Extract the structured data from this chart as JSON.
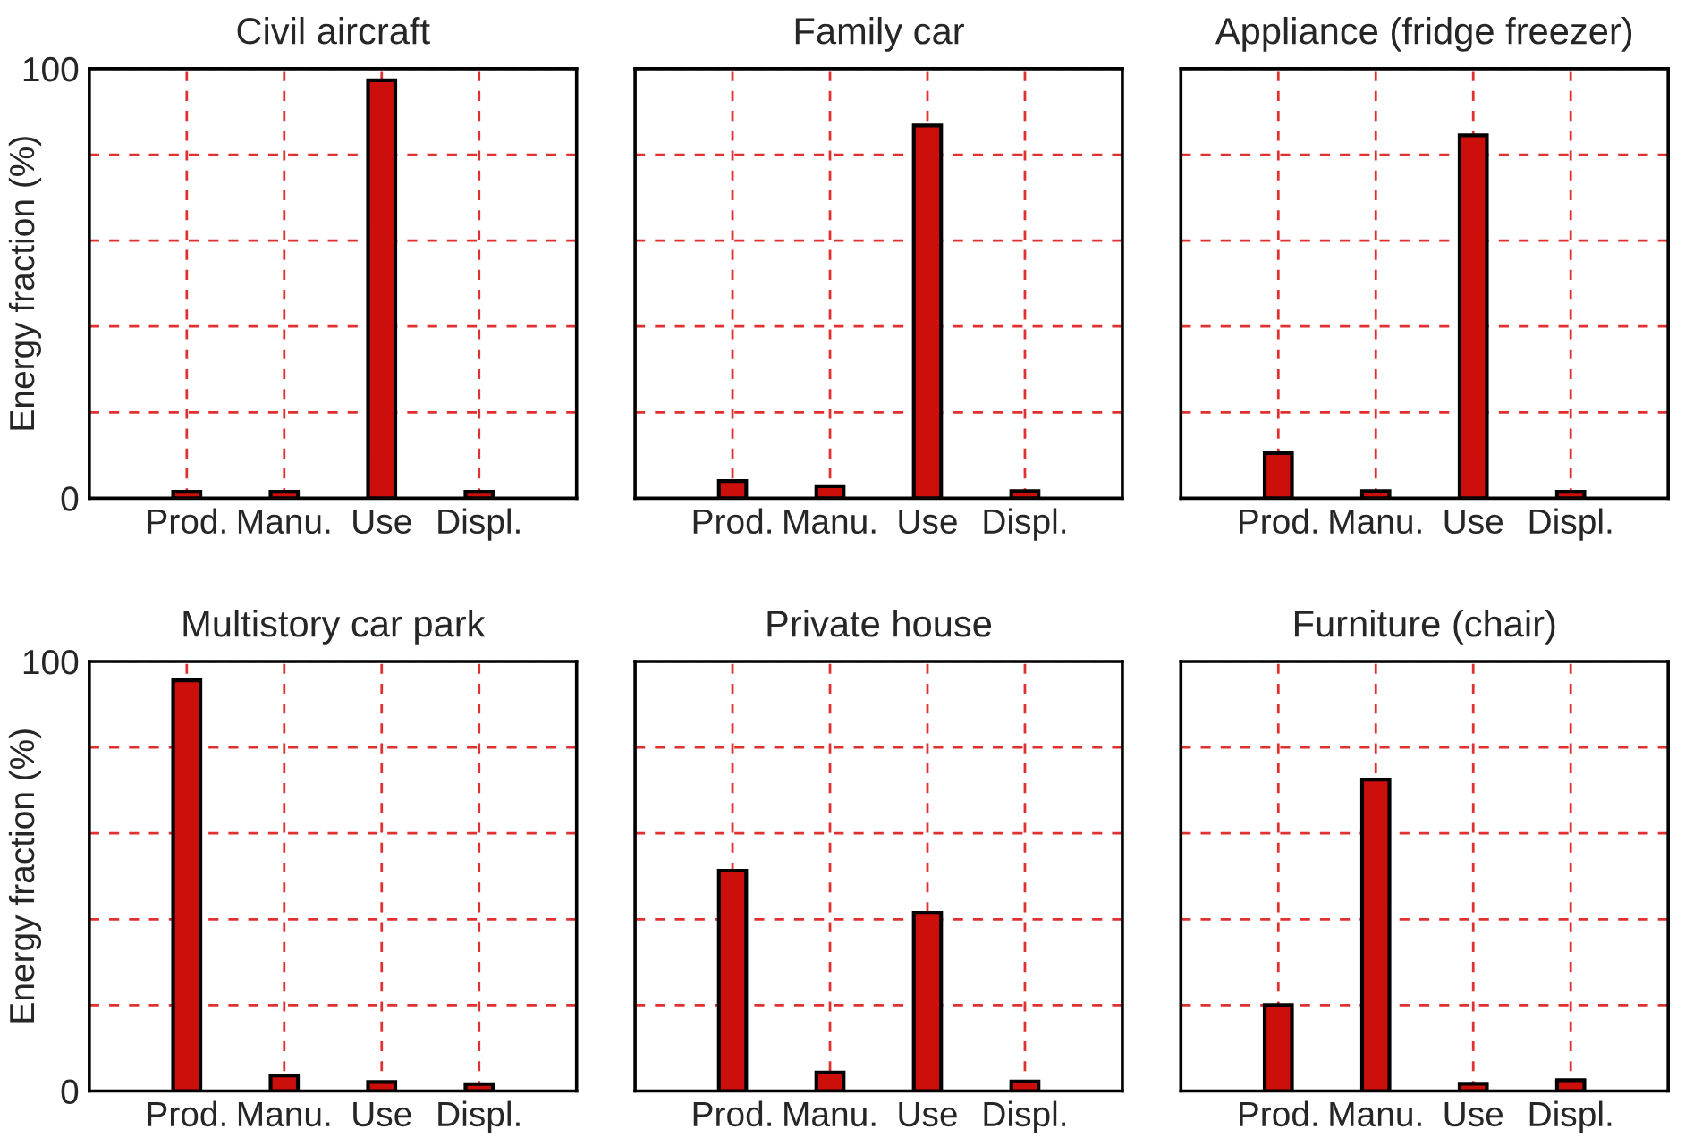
{
  "chart_data": [
    {
      "type": "bar",
      "title": "Civil aircraft",
      "ylabel": "Energy fraction (%)",
      "categories": [
        "Prod.",
        "Manu.",
        "Use",
        "Displ."
      ],
      "values": [
        1.5,
        1.5,
        97.3,
        1.5
      ],
      "color": "#cc0f0a",
      "ylim": [
        0,
        100
      ],
      "yticks": [
        0,
        {
          "value": 20,
          "label": null
        },
        {
          "value": 40,
          "label": null
        },
        {
          "value": 60,
          "label": null
        },
        {
          "value": 80,
          "label": null
        },
        100
      ],
      "grid": true
    },
    {
      "type": "bar",
      "title": "Family car",
      "categories": [
        "Prod.",
        "Manu.",
        "Use",
        "Displ."
      ],
      "values": [
        4,
        2.8,
        86.8,
        1.7
      ],
      "color": "#cc0f0a",
      "ylim": [
        0,
        100
      ],
      "yticks": [
        0,
        {
          "value": 20,
          "label": null
        },
        {
          "value": 40,
          "label": null
        },
        {
          "value": 60,
          "label": null
        },
        {
          "value": 80,
          "label": null
        },
        100
      ],
      "grid": true,
      "tick_labels": "x"
    },
    {
      "type": "bar",
      "title": "Appliance (fridge freezer)",
      "categories": [
        "Prod.",
        "Manu.",
        "Use",
        "Displ."
      ],
      "values": [
        10.5,
        1.7,
        84.5,
        1.5
      ],
      "color": "#cc0f0a",
      "ylim": [
        0,
        100
      ],
      "yticks": [
        0,
        {
          "value": 20,
          "label": null
        },
        {
          "value": 40,
          "label": null
        },
        {
          "value": 60,
          "label": null
        },
        {
          "value": 80,
          "label": null
        },
        100
      ],
      "grid": true,
      "tick_labels": "x"
    },
    {
      "type": "bar",
      "title": "Multistory car park",
      "ylabel": "Energy fraction (%)",
      "categories": [
        "Prod.",
        "Manu.",
        "Use",
        "Displ."
      ],
      "values": [
        95.6,
        3.6,
        2.1,
        1.6
      ],
      "color": "#cc0f0a",
      "ylim": [
        0,
        100
      ],
      "yticks": [
        0,
        {
          "value": 20,
          "label": null
        },
        {
          "value": 40,
          "label": null
        },
        {
          "value": 60,
          "label": null
        },
        {
          "value": 80,
          "label": null
        },
        100
      ],
      "grid": true
    },
    {
      "type": "bar",
      "title": "Private house",
      "categories": [
        "Prod.",
        "Manu.",
        "Use",
        "Displ."
      ],
      "values": [
        51.3,
        4.3,
        41.5,
        2.2
      ],
      "color": "#cc0f0a",
      "ylim": [
        0,
        100
      ],
      "yticks": [
        0,
        {
          "value": 20,
          "label": null
        },
        {
          "value": 40,
          "label": null
        },
        {
          "value": 60,
          "label": null
        },
        {
          "value": 80,
          "label": null
        },
        100
      ],
      "grid": true,
      "tick_labels": "x"
    },
    {
      "type": "bar",
      "title": "Furniture (chair)",
      "categories": [
        "Prod.",
        "Manu.",
        "Use",
        "Displ."
      ],
      "values": [
        20,
        72.5,
        1.7,
        2.5
      ],
      "color": "#cc0f0a",
      "ylim": [
        0,
        100
      ],
      "yticks": [
        0,
        {
          "value": 20,
          "label": null
        },
        {
          "value": 40,
          "label": null
        },
        {
          "value": 60,
          "label": null
        },
        {
          "value": 80,
          "label": null
        },
        100
      ],
      "grid": true,
      "tick_labels": "x"
    }
  ]
}
